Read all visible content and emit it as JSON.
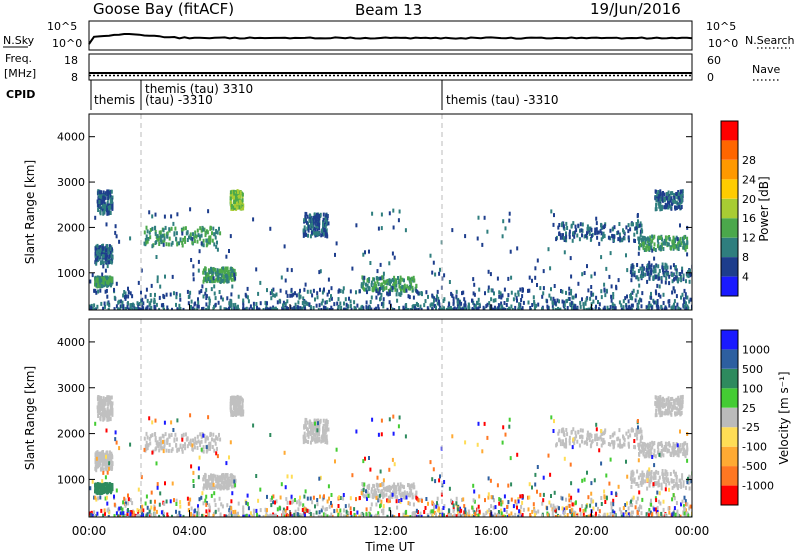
{
  "header": {
    "station": "Goose Bay (fitACF)",
    "beam": "Beam 13",
    "date": "19/Jun/2016"
  },
  "noise_panel": {
    "left_label": "N.Sky",
    "right_label": "N.Search",
    "left_ticks": [
      "10^5",
      "10^0"
    ],
    "right_ticks": [
      "10^5",
      "10^0"
    ]
  },
  "freq_panel": {
    "left_label_line1": "Freq.",
    "left_label_line2": "[MHz]",
    "right_label": "Nave",
    "left_ticks": [
      "18",
      "8"
    ],
    "right_ticks": [
      "60",
      "0"
    ]
  },
  "cpid_panel": {
    "label": "CPID",
    "entries": [
      {
        "time_hr": 0.0,
        "name": "themis",
        "id": ""
      },
      {
        "time_hr": 1.9,
        "name": "themis (tau) 3310",
        "id": "(tau) -3310"
      },
      {
        "time_hr": 14.0,
        "name": "themis (tau) -3310",
        "id": ""
      }
    ]
  },
  "time_axis": {
    "label": "Time UT",
    "ticks": [
      "00:00",
      "04:00",
      "08:00",
      "12:00",
      "16:00",
      "20:00",
      "00:00"
    ]
  },
  "range_axis": {
    "label": "Slant Range [km]",
    "ticks": [
      "1000",
      "2000",
      "3000",
      "4000"
    ]
  },
  "power_colorbar": {
    "label": "Power [dB]",
    "ticks": [
      "4",
      "8",
      "12",
      "16",
      "20",
      "24",
      "28"
    ],
    "colors": [
      "#1a1aff",
      "#1d3d8c",
      "#2f7e7e",
      "#4ba84b",
      "#a8cc33",
      "#ffcc00",
      "#ff9900",
      "#ff6600",
      "#ff0000"
    ]
  },
  "velocity_colorbar": {
    "label": "Velocity [m s⁻¹]",
    "ticks": [
      "1000",
      "500",
      "100",
      "25",
      "-25",
      "-100",
      "-500",
      "-1000"
    ],
    "colors": [
      "#1a1aff",
      "#2d5fa0",
      "#2e8a5e",
      "#44cc33",
      "#bbbbbb",
      "#ffdd55",
      "#ffaa33",
      "#ff7722",
      "#ff0000"
    ]
  },
  "chart_data": {
    "type": "heatmap",
    "title": "Goose Bay (fitACF) Beam 13 19/Jun/2016",
    "xlabel": "Time UT",
    "ylabel": "Slant Range [km]",
    "xlim_hours": [
      0,
      24
    ],
    "ylim_km": [
      180,
      4500
    ],
    "panels": [
      "Power [dB]",
      "Velocity [m s-1]"
    ],
    "backscatter_regions": [
      {
        "t0": 0.3,
        "t1": 0.9,
        "r0": 2300,
        "r1": 2800,
        "power_db": 8,
        "velocity": "ground"
      },
      {
        "t0": 0.2,
        "t1": 0.9,
        "r0": 1200,
        "r1": 1600,
        "power_db": 8,
        "velocity": "ground"
      },
      {
        "t0": 0.2,
        "t1": 0.9,
        "r0": 700,
        "r1": 900,
        "power_db": 12,
        "velocity": 100
      },
      {
        "t0": 2.1,
        "t1": 5.2,
        "r0": 1600,
        "r1": 2000,
        "power_db": 12,
        "velocity": "ground"
      },
      {
        "t0": 4.5,
        "t1": 5.8,
        "r0": 800,
        "r1": 1100,
        "power_db": 12,
        "velocity": "ground"
      },
      {
        "t0": 5.6,
        "t1": 6.1,
        "r0": 2400,
        "r1": 2800,
        "power_db": 16,
        "velocity": "ground"
      },
      {
        "t0": 8.5,
        "t1": 9.5,
        "r0": 1800,
        "r1": 2300,
        "power_db": 8,
        "velocity": "ground"
      },
      {
        "t0": 10.8,
        "t1": 13.0,
        "r0": 600,
        "r1": 900,
        "power_db": 12,
        "velocity": "ground"
      },
      {
        "t0": 18.5,
        "t1": 22.0,
        "r0": 1700,
        "r1": 2100,
        "power_db": 8,
        "velocity": "ground"
      },
      {
        "t0": 21.8,
        "t1": 23.8,
        "r0": 1500,
        "r1": 1800,
        "power_db": 12,
        "velocity": "ground"
      },
      {
        "t0": 21.5,
        "t1": 23.9,
        "r0": 800,
        "r1": 1200,
        "power_db": 8,
        "velocity": "ground"
      },
      {
        "t0": 22.5,
        "t1": 23.6,
        "r0": 2400,
        "r1": 2800,
        "power_db": 8,
        "velocity": "ground"
      },
      {
        "t0": 0.0,
        "t1": 24.0,
        "r0": 180,
        "r1": 600,
        "power_db": 8,
        "velocity": "mixed"
      }
    ]
  }
}
